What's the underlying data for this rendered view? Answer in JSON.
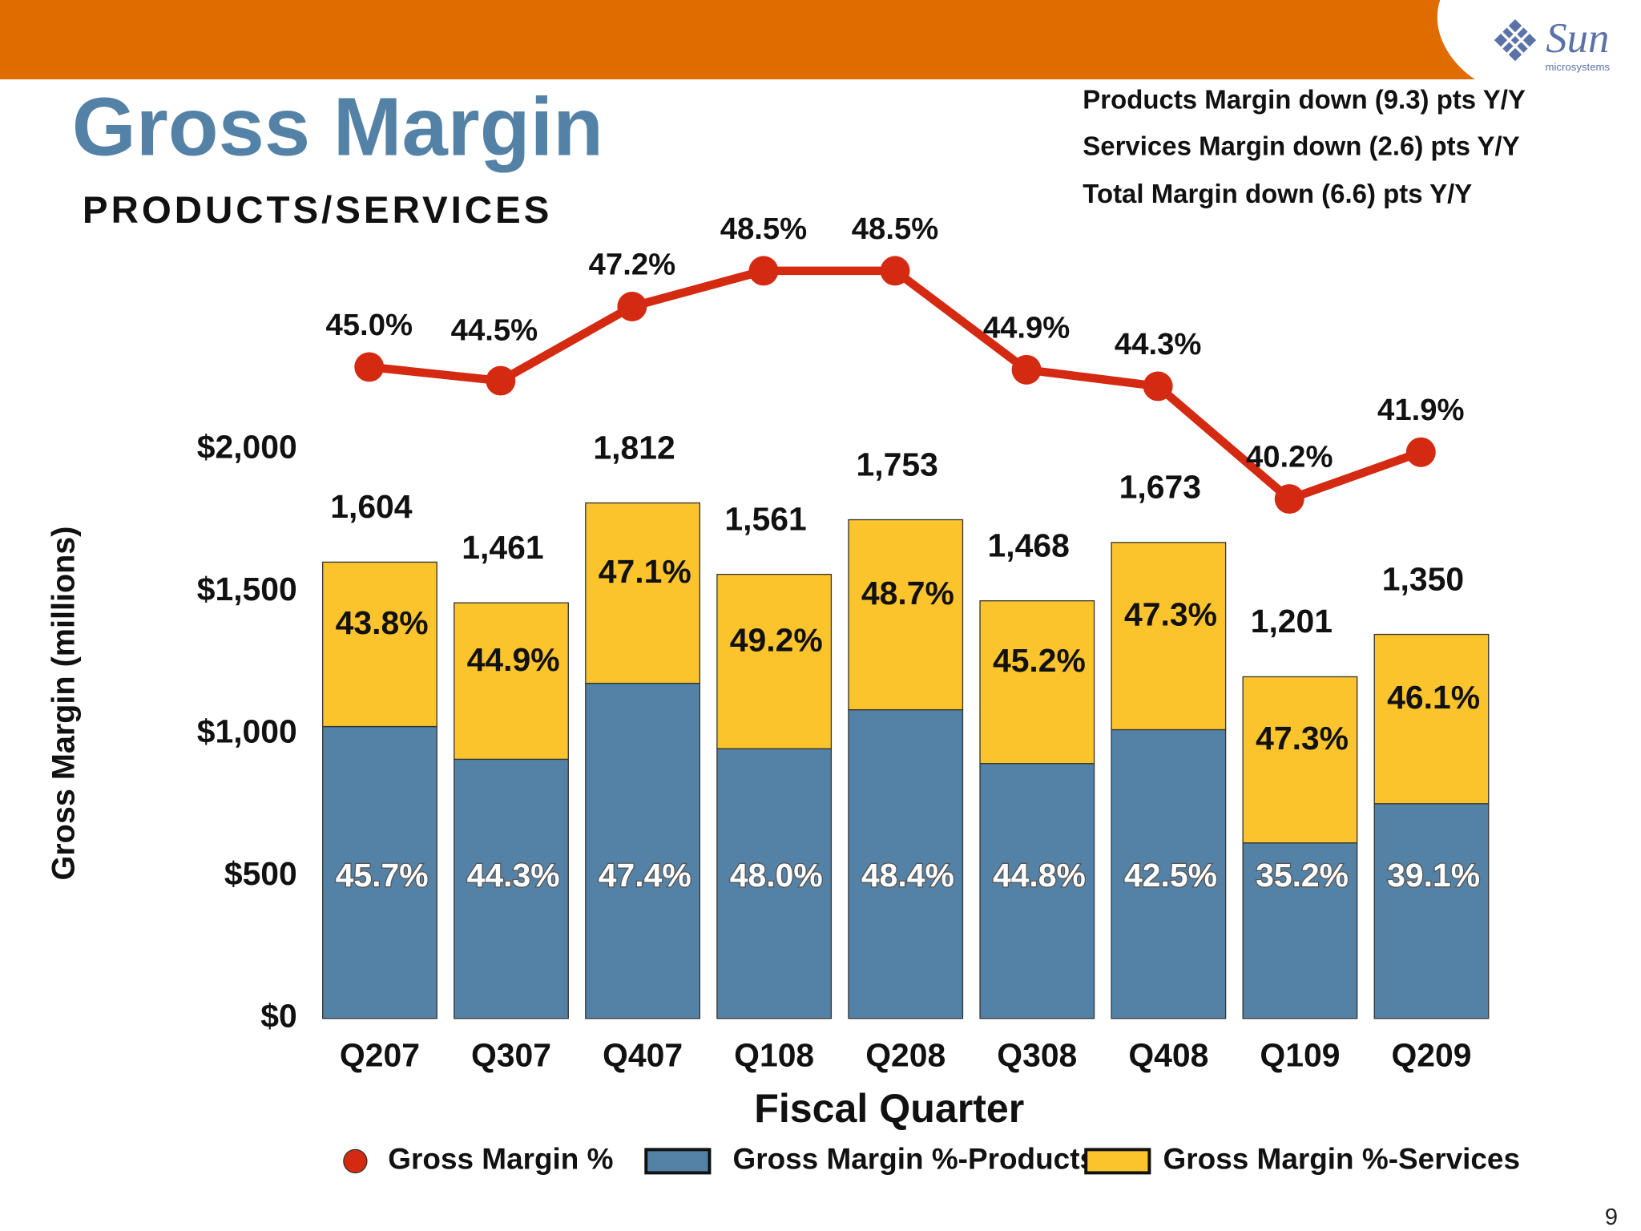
{
  "header": {
    "logo": "Sun",
    "logo_sub": "microsystems",
    "page_number": "9"
  },
  "chart_data": {
    "type": "bar",
    "title": "Gross Margin",
    "subtitle": "PRODUCTS/SERVICES",
    "notes": [
      "Products Margin down (9.3) pts Y/Y",
      "Services Margin down (2.6) pts Y/Y",
      "Total Margin down (6.6) pts Y/Y"
    ],
    "x_label": "Fiscal Quarter",
    "y_label": "Gross Margin (millions)",
    "categories": [
      "Q207",
      "Q307",
      "Q407",
      "Q108",
      "Q208",
      "Q308",
      "Q408",
      "Q109",
      "Q209"
    ],
    "ylim": [
      0,
      2000
    ],
    "yticks": [
      {
        "value": 0,
        "label": "$0"
      },
      {
        "value": 500,
        "label": "$500"
      },
      {
        "value": 1000,
        "label": "$1,000"
      },
      {
        "value": 1500,
        "label": "$1,500"
      },
      {
        "value": 2000,
        "label": "$2,000"
      }
    ],
    "y2lim": [
      21.3,
      42.0
    ],
    "stacked": true,
    "series": [
      {
        "name": "Gross Margin %-Products",
        "color": "#5482a6",
        "values": [
          1026,
          911,
          1178,
          948,
          1085,
          896,
          1015,
          617,
          755
        ],
        "segment_labels": [
          "45.7%",
          "44.3%",
          "47.4%",
          "48.0%",
          "48.4%",
          "44.8%",
          "42.5%",
          "35.2%",
          "39.1%"
        ]
      },
      {
        "name": "Gross Margin %-Services",
        "color": "#fcc42c",
        "values": [
          578,
          550,
          634,
          613,
          668,
          572,
          658,
          584,
          595
        ],
        "segment_labels": [
          "43.8%",
          "44.9%",
          "47.1%",
          "49.2%",
          "48.7%",
          "45.2%",
          "47.3%",
          "47.3%",
          "46.1%"
        ]
      },
      {
        "name": "Gross Margin %",
        "type": "line",
        "axis": "y2",
        "color": "#d42a12",
        "values": [
          45.0,
          44.5,
          47.2,
          48.5,
          48.5,
          44.9,
          44.3,
          40.2,
          41.9
        ],
        "value_labels": [
          "45.0%",
          "44.5%",
          "47.2%",
          "48.5%",
          "48.5%",
          "44.9%",
          "44.3%",
          "40.2%",
          "41.9%"
        ]
      }
    ],
    "totals": [
      1604,
      1461,
      1812,
      1561,
      1753,
      1468,
      1673,
      1201,
      1350
    ],
    "total_labels": [
      "1,604",
      "1,461",
      "1,812",
      "1,561",
      "1,753",
      "1,468",
      "1,673",
      "1,201",
      "1,350"
    ]
  }
}
